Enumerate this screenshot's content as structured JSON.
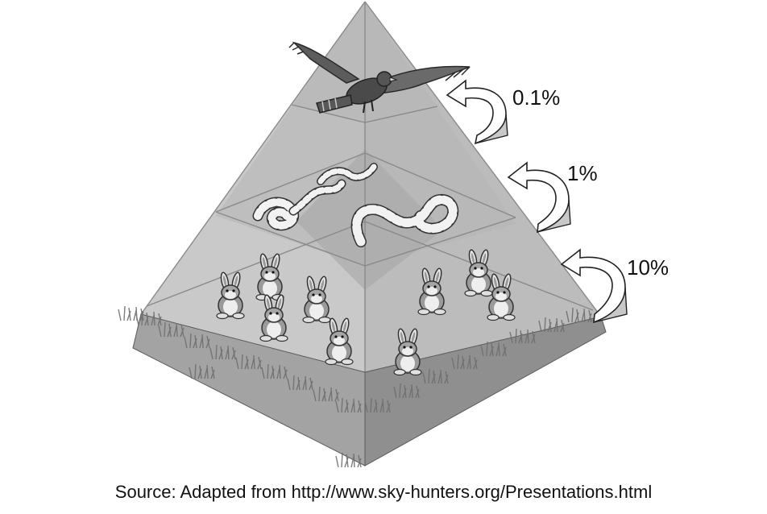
{
  "diagram": {
    "levels": [
      {
        "organism": "hawk-icon",
        "energy_label": "0.1%"
      },
      {
        "organism": "snake-icon",
        "energy_label": "1%"
      },
      {
        "organism": "rabbit-icon",
        "energy_label": "10%"
      }
    ],
    "colors": {
      "pyramid_light": "#cfcfcf",
      "pyramid_mid": "#bdbdbd",
      "pyramid_dark": "#a9a9a9",
      "edge": "#8c8c8c",
      "arrow_fill": "#c8c8c8",
      "grass": "#7a7a7a"
    }
  },
  "source": {
    "text": "Source: Adapted from http://www.sky-hunters.org/Presentations.html"
  }
}
